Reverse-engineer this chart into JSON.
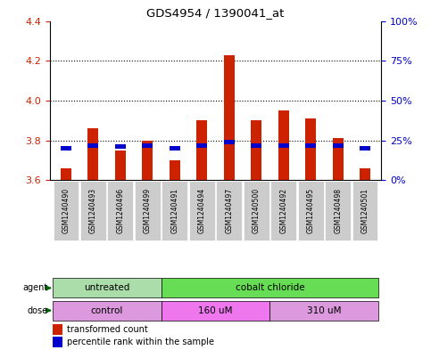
{
  "title": "GDS4954 / 1390041_at",
  "samples": [
    "GSM1240490",
    "GSM1240493",
    "GSM1240496",
    "GSM1240499",
    "GSM1240491",
    "GSM1240494",
    "GSM1240497",
    "GSM1240500",
    "GSM1240492",
    "GSM1240495",
    "GSM1240498",
    "GSM1240501"
  ],
  "transformed_counts": [
    3.66,
    3.86,
    3.75,
    3.8,
    3.7,
    3.9,
    4.23,
    3.9,
    3.95,
    3.91,
    3.81,
    3.66
  ],
  "percentile_ranks": [
    20,
    22,
    21,
    22,
    20,
    22,
    24,
    22,
    22,
    22,
    22,
    20
  ],
  "ylim_left": [
    3.6,
    4.4
  ],
  "ylim_right": [
    0,
    100
  ],
  "yticks_left": [
    3.6,
    3.8,
    4.0,
    4.2,
    4.4
  ],
  "yticks_right": [
    0,
    25,
    50,
    75,
    100
  ],
  "ytick_labels_right": [
    "0%",
    "25%",
    "50%",
    "75%",
    "100%"
  ],
  "bar_color": "#cc2200",
  "percentile_color": "#0000cc",
  "bar_bottom": 3.6,
  "agent_groups": [
    {
      "label": "untreated",
      "start": 0,
      "end": 4,
      "color": "#aaddaa"
    },
    {
      "label": "cobalt chloride",
      "start": 4,
      "end": 12,
      "color": "#66dd55"
    }
  ],
  "dose_groups": [
    {
      "label": "control",
      "start": 0,
      "end": 4,
      "color": "#dd99dd"
    },
    {
      "label": "160 uM",
      "start": 4,
      "end": 8,
      "color": "#ee77ee"
    },
    {
      "label": "310 uM",
      "start": 8,
      "end": 12,
      "color": "#dd99dd"
    }
  ],
  "legend_items": [
    {
      "label": "transformed count",
      "color": "#cc2200"
    },
    {
      "label": "percentile rank within the sample",
      "color": "#0000cc"
    }
  ],
  "tick_color_left": "#cc2200",
  "tick_color_right": "#0000cc",
  "xticklabel_bg": "#cccccc",
  "label_arrow_color": "#006600"
}
